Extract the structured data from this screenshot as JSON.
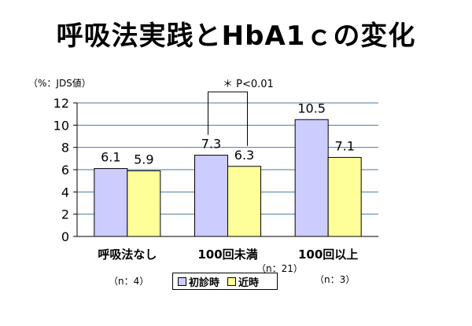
{
  "title": "呼吸法実践とHbA1ｃの変化",
  "unit_label": "（%：JDS値）",
  "significance": "＊ P<0.01",
  "chart_data": {
    "type": "bar",
    "title": "呼吸法実践とHbA1ｃの変化",
    "ylabel": "（%：JDS値）",
    "ylim": [
      0,
      12
    ],
    "yticks": [
      "0",
      "2",
      "4",
      "6",
      "8",
      "10",
      "12"
    ],
    "categories": [
      "呼吸法なし",
      "100回未満",
      "100回以上"
    ],
    "sample_sizes": [
      "（n：4）",
      "（n：21）",
      "（n：3）"
    ],
    "series": [
      {
        "name": "初診時",
        "values": [
          6.1,
          7.3,
          10.5
        ],
        "labels": [
          "6.1",
          "7.3",
          "10.5"
        ],
        "color": "#ccccff"
      },
      {
        "name": "近時",
        "values": [
          5.9,
          6.3,
          7.1
        ],
        "labels": [
          "5.9",
          "6.3",
          "7.1"
        ],
        "color": "#ffff99"
      }
    ],
    "grid": true,
    "legend_position": "bottom"
  }
}
